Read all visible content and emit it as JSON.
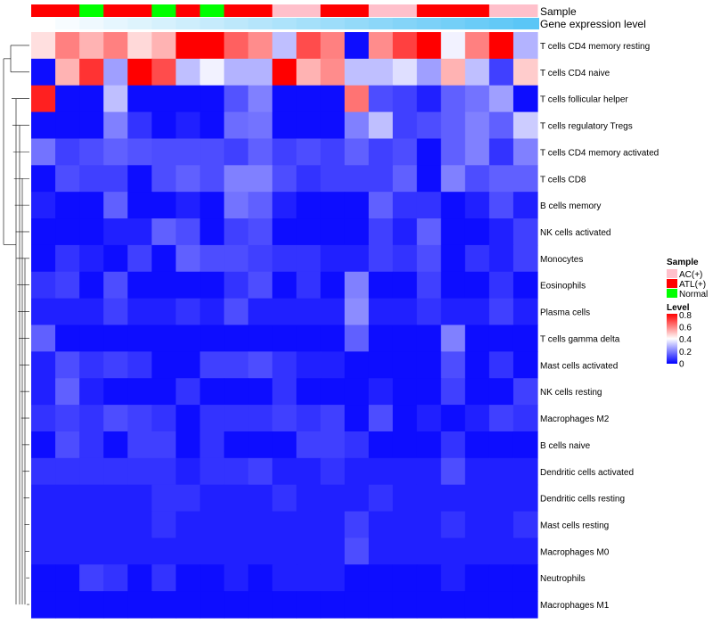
{
  "chart_data": {
    "type": "heatmap",
    "title": "",
    "annotation_tracks": [
      {
        "name": "Sample",
        "values": [
          "ATL(+)",
          "ATL(+)",
          "Normal",
          "ATL(+)",
          "ATL(+)",
          "Normal",
          "ATL(+)",
          "Normal",
          "ATL(+)",
          "ATL(+)",
          "AC(+)",
          "AC(+)",
          "ATL(+)",
          "ATL(+)",
          "AC(+)",
          "AC(+)",
          "ATL(+)",
          "ATL(+)",
          "ATL(+)",
          "AC(+)",
          "AC(+)"
        ]
      },
      {
        "name": "Gene expression level",
        "values": [
          0.0,
          0.05,
          0.1,
          0.15,
          0.2,
          0.25,
          0.3,
          0.35,
          0.4,
          0.45,
          0.5,
          0.55,
          0.6,
          0.65,
          0.7,
          0.75,
          0.8,
          0.85,
          0.9,
          0.95,
          1.0
        ]
      }
    ],
    "rows": [
      "T cells CD4 memory resting",
      "T cells CD4 naive",
      "T cells follicular helper",
      "T cells regulatory  Tregs",
      "T cells CD4 memory activated",
      "T cells CD8",
      "B cells memory",
      "NK cells activated",
      "Monocytes",
      "Eosinophils",
      "Plasma cells",
      "T cells gamma delta",
      "Mast cells activated",
      "NK cells resting",
      "Macrophages M2",
      "B cells naive",
      "Dendritic cells activated",
      "Dendritic cells resting",
      "Mast cells resting",
      "Macrophages M0",
      "Neutrophils",
      "Macrophages M1"
    ],
    "values": [
      [
        0.45,
        0.6,
        0.52,
        0.6,
        0.46,
        0.52,
        0.8,
        0.8,
        0.65,
        0.58,
        0.3,
        0.68,
        0.6,
        0.02,
        0.58,
        0.7,
        0.8,
        0.38,
        0.6,
        0.8,
        0.28
      ],
      [
        0.02,
        0.52,
        0.72,
        0.25,
        0.8,
        0.68,
        0.3,
        0.38,
        0.28,
        0.28,
        0.8,
        0.52,
        0.58,
        0.3,
        0.3,
        0.35,
        0.25,
        0.52,
        0.3,
        0.1,
        0.48
      ],
      [
        0.75,
        0.02,
        0.02,
        0.3,
        0.02,
        0.02,
        0.02,
        0.02,
        0.13,
        0.2,
        0.02,
        0.02,
        0.02,
        0.62,
        0.12,
        0.1,
        0.05,
        0.15,
        0.18,
        0.25,
        0.02
      ],
      [
        0.02,
        0.02,
        0.02,
        0.2,
        0.08,
        0.02,
        0.05,
        0.02,
        0.17,
        0.18,
        0.02,
        0.02,
        0.02,
        0.2,
        0.3,
        0.1,
        0.12,
        0.15,
        0.2,
        0.15,
        0.32
      ],
      [
        0.18,
        0.1,
        0.12,
        0.15,
        0.13,
        0.12,
        0.12,
        0.12,
        0.1,
        0.15,
        0.1,
        0.12,
        0.1,
        0.15,
        0.1,
        0.12,
        0.02,
        0.15,
        0.2,
        0.08,
        0.2
      ],
      [
        0.02,
        0.12,
        0.1,
        0.1,
        0.02,
        0.12,
        0.15,
        0.12,
        0.2,
        0.2,
        0.12,
        0.08,
        0.1,
        0.1,
        0.1,
        0.15,
        0.02,
        0.2,
        0.12,
        0.15,
        0.15
      ],
      [
        0.05,
        0.02,
        0.02,
        0.15,
        0.02,
        0.02,
        0.05,
        0.02,
        0.18,
        0.15,
        0.05,
        0.02,
        0.02,
        0.02,
        0.15,
        0.08,
        0.08,
        0.02,
        0.05,
        0.12,
        0.05
      ],
      [
        0.02,
        0.02,
        0.02,
        0.05,
        0.05,
        0.15,
        0.12,
        0.02,
        0.1,
        0.12,
        0.02,
        0.02,
        0.02,
        0.02,
        0.1,
        0.05,
        0.15,
        0.02,
        0.02,
        0.05,
        0.1
      ],
      [
        0.02,
        0.08,
        0.05,
        0.02,
        0.1,
        0.02,
        0.15,
        0.12,
        0.12,
        0.1,
        0.08,
        0.08,
        0.05,
        0.05,
        0.1,
        0.08,
        0.12,
        0.02,
        0.08,
        0.05,
        0.1
      ],
      [
        0.08,
        0.1,
        0.02,
        0.12,
        0.02,
        0.02,
        0.02,
        0.02,
        0.08,
        0.12,
        0.02,
        0.08,
        0.02,
        0.2,
        0.02,
        0.02,
        0.1,
        0.02,
        0.02,
        0.08,
        0.02
      ],
      [
        0.05,
        0.05,
        0.05,
        0.1,
        0.05,
        0.05,
        0.08,
        0.05,
        0.12,
        0.05,
        0.05,
        0.05,
        0.05,
        0.22,
        0.05,
        0.05,
        0.08,
        0.05,
        0.05,
        0.1,
        0.05
      ],
      [
        0.15,
        0.02,
        0.02,
        0.02,
        0.02,
        0.02,
        0.02,
        0.02,
        0.02,
        0.02,
        0.02,
        0.02,
        0.02,
        0.15,
        0.02,
        0.02,
        0.02,
        0.2,
        0.02,
        0.02,
        0.02
      ],
      [
        0.05,
        0.12,
        0.08,
        0.1,
        0.08,
        0.02,
        0.02,
        0.1,
        0.1,
        0.12,
        0.08,
        0.05,
        0.05,
        0.02,
        0.02,
        0.02,
        0.02,
        0.12,
        0.02,
        0.08,
        0.02
      ],
      [
        0.05,
        0.15,
        0.05,
        0.02,
        0.02,
        0.02,
        0.08,
        0.02,
        0.02,
        0.02,
        0.08,
        0.02,
        0.02,
        0.02,
        0.05,
        0.02,
        0.02,
        0.1,
        0.02,
        0.02,
        0.1
      ],
      [
        0.08,
        0.1,
        0.08,
        0.12,
        0.1,
        0.08,
        0.02,
        0.08,
        0.08,
        0.08,
        0.1,
        0.08,
        0.1,
        0.02,
        0.12,
        0.02,
        0.05,
        0.02,
        0.05,
        0.1,
        0.08
      ],
      [
        0.02,
        0.12,
        0.08,
        0.02,
        0.1,
        0.1,
        0.02,
        0.08,
        0.02,
        0.02,
        0.02,
        0.1,
        0.1,
        0.08,
        0.02,
        0.02,
        0.02,
        0.08,
        0.02,
        0.02,
        0.02
      ],
      [
        0.08,
        0.08,
        0.08,
        0.08,
        0.08,
        0.08,
        0.05,
        0.08,
        0.08,
        0.1,
        0.05,
        0.05,
        0.08,
        0.05,
        0.05,
        0.05,
        0.05,
        0.12,
        0.05,
        0.05,
        0.05
      ],
      [
        0.05,
        0.05,
        0.05,
        0.05,
        0.05,
        0.08,
        0.08,
        0.05,
        0.05,
        0.05,
        0.08,
        0.05,
        0.05,
        0.05,
        0.08,
        0.05,
        0.05,
        0.05,
        0.05,
        0.05,
        0.05
      ],
      [
        0.05,
        0.05,
        0.05,
        0.05,
        0.05,
        0.08,
        0.05,
        0.05,
        0.05,
        0.05,
        0.05,
        0.05,
        0.05,
        0.1,
        0.05,
        0.05,
        0.05,
        0.08,
        0.05,
        0.05,
        0.08
      ],
      [
        0.05,
        0.05,
        0.05,
        0.05,
        0.05,
        0.05,
        0.05,
        0.05,
        0.05,
        0.05,
        0.05,
        0.05,
        0.05,
        0.12,
        0.05,
        0.05,
        0.05,
        0.05,
        0.05,
        0.05,
        0.05
      ],
      [
        0.02,
        0.02,
        0.1,
        0.08,
        0.02,
        0.08,
        0.02,
        0.02,
        0.05,
        0.02,
        0.05,
        0.05,
        0.05,
        0.02,
        0.02,
        0.02,
        0.02,
        0.05,
        0.02,
        0.02,
        0.02
      ],
      [
        0.02,
        0.02,
        0.02,
        0.02,
        0.02,
        0.02,
        0.02,
        0.02,
        0.02,
        0.02,
        0.02,
        0.02,
        0.02,
        0.02,
        0.02,
        0.02,
        0.02,
        0.02,
        0.02,
        0.02,
        0.02
      ]
    ],
    "color_scale": {
      "low": "#0000FF",
      "mid": "#FFFFFF",
      "high": "#FF0000",
      "min": 0,
      "mid_value": 0.4,
      "max": 0.8
    },
    "legend": {
      "sample_title": "Sample",
      "sample_items": [
        {
          "label": "AC(+)",
          "color": "#FFC0CB"
        },
        {
          "label": "ATL(+)",
          "color": "#FF0000"
        },
        {
          "label": "Normal",
          "color": "#00FF00"
        }
      ],
      "level_title": "Level",
      "level_ticks": [
        "0.8",
        "0.6",
        "0.4",
        "0.2",
        "0"
      ],
      "placement": "right"
    },
    "gene_expression_colors": {
      "low": "#ffffff",
      "high": "#5bc6f6"
    },
    "dendrogram": "row clustering on left"
  }
}
